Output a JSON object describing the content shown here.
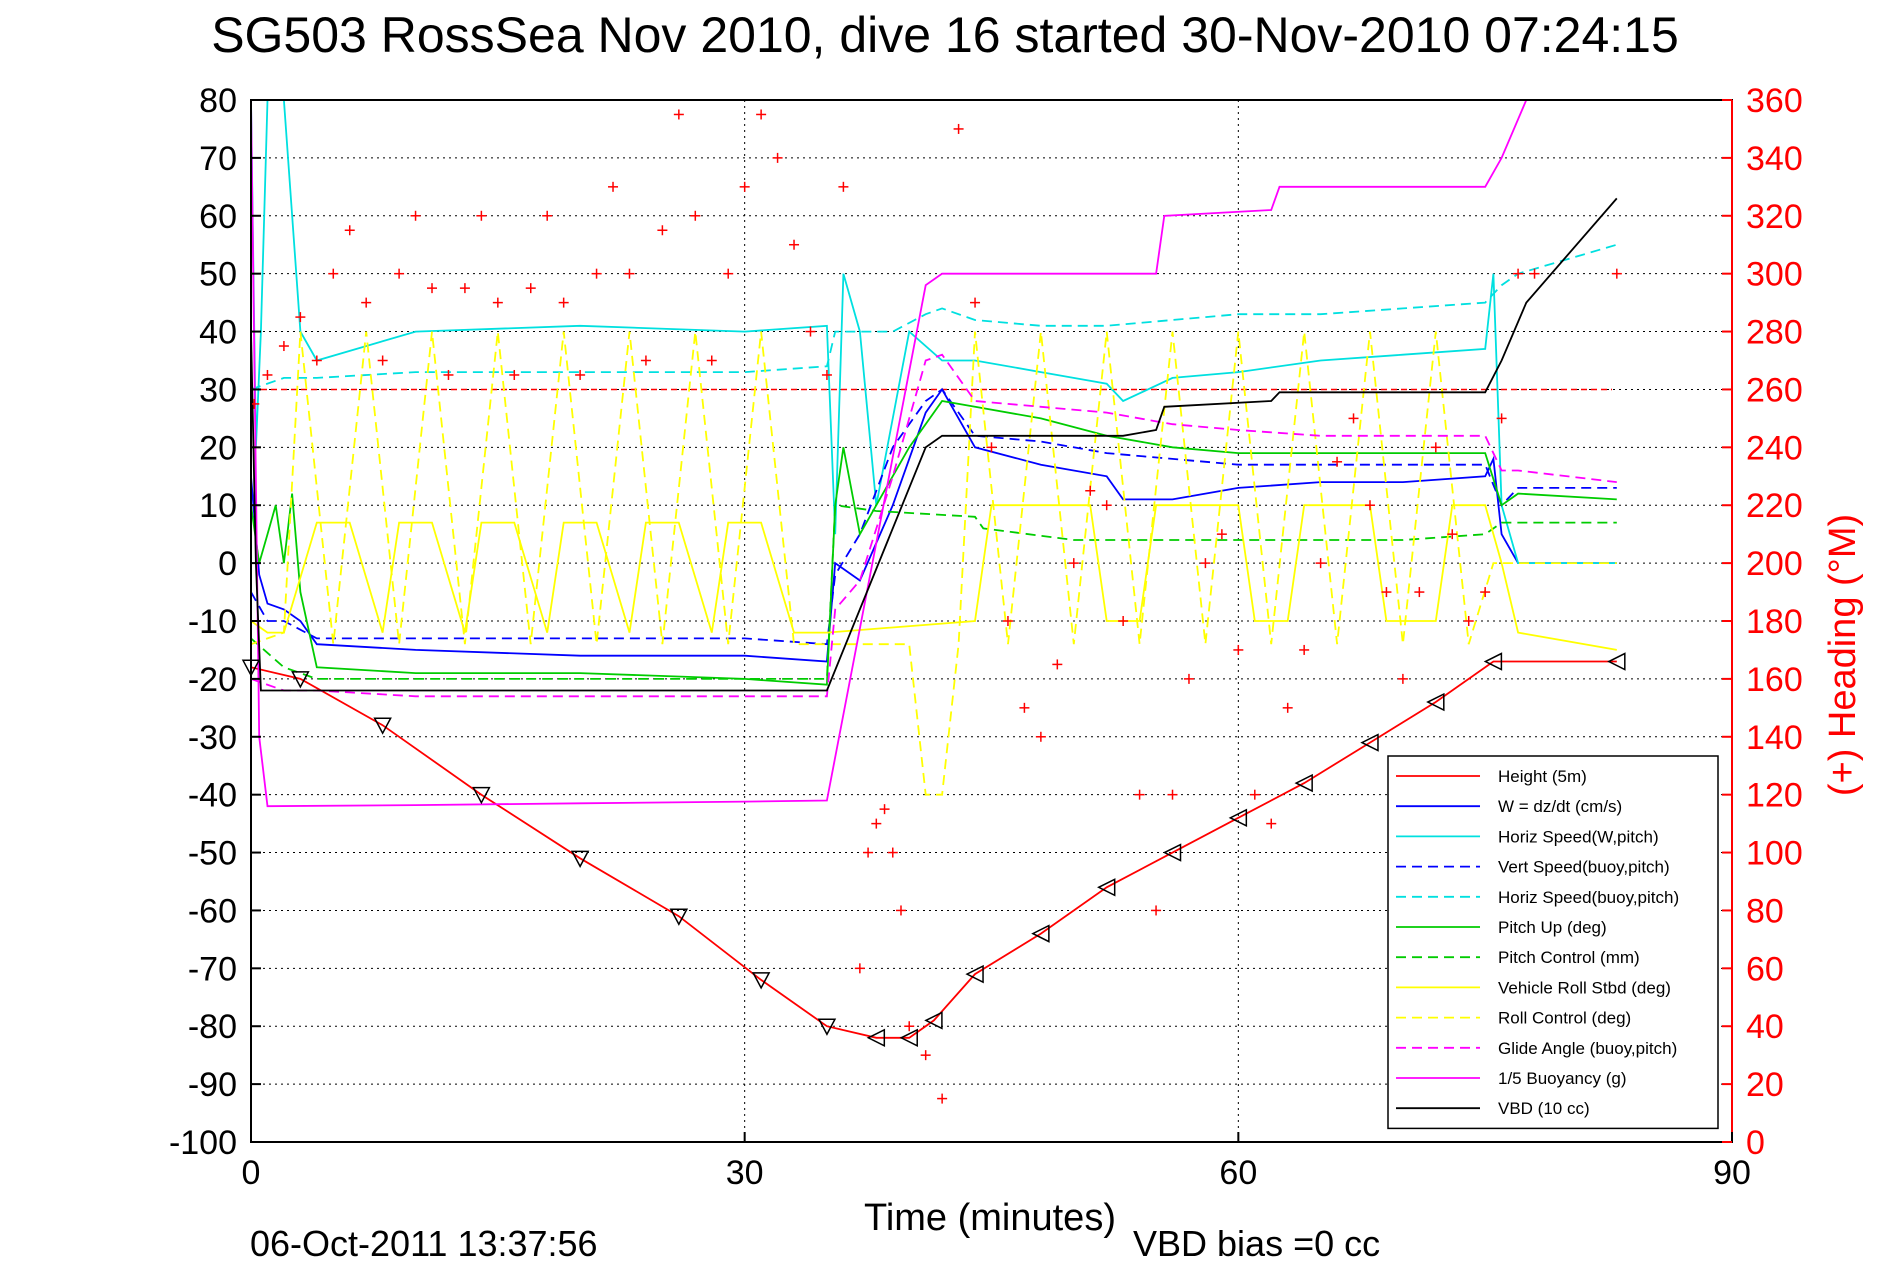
{
  "chart_data": {
    "type": "line",
    "title": "SG503 RossSea Nov 2010, dive 16 started 30-Nov-2010 07:24:15",
    "xlabel": "Time (minutes)",
    "ylabel": "",
    "y2label": "(+) Heading (°M)",
    "xlim": [
      0,
      90
    ],
    "ylim": [
      -100,
      80
    ],
    "y2lim": [
      0,
      360
    ],
    "xticks": [
      "0",
      "30",
      "60",
      "90"
    ],
    "yticks": [
      "80",
      "70",
      "60",
      "50",
      "40",
      "30",
      "20",
      "10",
      "0",
      "-10",
      "-20",
      "-30",
      "-40",
      "-50",
      "-60",
      "-70",
      "-80",
      "-90",
      "-100"
    ],
    "y2ticks": [
      "360",
      "340",
      "320",
      "300",
      "280",
      "260",
      "240",
      "220",
      "200",
      "180",
      "160",
      "140",
      "120",
      "100",
      "80",
      "60",
      "40",
      "20",
      "0"
    ],
    "grid": true,
    "legend_position": "bottom-right",
    "footer_left": "06-Oct-2011 13:37:56",
    "footer_right": "VBD bias =0 cc",
    "series": [
      {
        "name": "Height (5m)",
        "color": "#ff0000",
        "style": "solid",
        "x": [
          0,
          3,
          8,
          14,
          20,
          26,
          31,
          35,
          38,
          40,
          41.5,
          44,
          48,
          52,
          56,
          60,
          64,
          68,
          72,
          75.5,
          83
        ],
        "y": [
          -18,
          -20,
          -28,
          -40,
          -51,
          -61,
          -72,
          -80,
          -82,
          -82,
          -79,
          -71,
          -64,
          -56,
          -50,
          -44,
          -38,
          -31,
          -24,
          -17,
          -17
        ]
      },
      {
        "name": "W = dz/dt (cm/s)",
        "color": "#0000ff",
        "style": "solid",
        "x": [
          0,
          0.5,
          1,
          2,
          3,
          4,
          10,
          20,
          30,
          35,
          35.5,
          37,
          39,
          41,
          42,
          44,
          48,
          52,
          53,
          56,
          60,
          65,
          70,
          75,
          75.5,
          76,
          77,
          83
        ],
        "y": [
          15,
          -2,
          -7,
          -8,
          -10,
          -14,
          -15,
          -16,
          -16,
          -17,
          0,
          -3,
          10,
          26,
          30,
          20,
          17,
          15,
          11,
          11,
          13,
          14,
          14,
          15,
          18,
          5,
          0,
          0
        ]
      },
      {
        "name": "Horiz Speed(W,pitch)",
        "color": "#00e0e0",
        "style": "solid",
        "x": [
          0,
          0.3,
          0.6,
          1,
          2,
          3,
          4,
          10,
          20,
          30,
          35,
          35.5,
          36,
          37,
          38,
          40,
          42,
          44,
          48,
          52,
          53,
          56,
          60,
          65,
          70,
          75,
          75.5,
          76,
          77,
          83
        ],
        "y": [
          80,
          20,
          40,
          80,
          80,
          40,
          35,
          40,
          41,
          40,
          41,
          5,
          50,
          40,
          10,
          40,
          35,
          35,
          33,
          31,
          28,
          32,
          33,
          35,
          36,
          37,
          50,
          10,
          0,
          0
        ]
      },
      {
        "name": "Vert Speed(buoy,pitch)",
        "color": "#0000ff",
        "style": "dashed",
        "x": [
          0,
          1,
          2,
          4,
          10,
          20,
          30,
          35,
          35.5,
          37,
          39,
          41,
          42,
          44,
          48,
          52,
          56,
          60,
          65,
          70,
          75,
          76,
          77,
          83
        ],
        "y": [
          -5,
          -10,
          -10,
          -13,
          -13,
          -13,
          -13,
          -14,
          -2,
          5,
          20,
          28,
          30,
          22,
          21,
          19,
          18,
          17,
          17,
          17,
          17,
          10,
          13,
          13
        ]
      },
      {
        "name": "Horiz Speed(buoy,pitch)",
        "color": "#00e0e0",
        "style": "dashed",
        "x": [
          0,
          2,
          4,
          10,
          20,
          30,
          35,
          35.5,
          37,
          39,
          41,
          42,
          44,
          48,
          52,
          56,
          60,
          65,
          70,
          75,
          76,
          77,
          83
        ],
        "y": [
          30,
          32,
          32,
          33,
          33,
          33,
          34,
          40,
          40,
          40,
          43,
          44,
          42,
          41,
          41,
          42,
          43,
          43,
          44,
          45,
          48,
          50,
          55
        ]
      },
      {
        "name": "Pitch Up (deg)",
        "color": "#00cc00",
        "style": "solid",
        "x": [
          0,
          0.5,
          1,
          1.5,
          2,
          2.5,
          3,
          4,
          10,
          20,
          30,
          35,
          35.5,
          36,
          37,
          38,
          40,
          42,
          44,
          48,
          52,
          56,
          60,
          65,
          70,
          75,
          76,
          77,
          83
        ],
        "y": [
          10,
          0,
          5,
          10,
          0,
          12,
          -5,
          -18,
          -19,
          -19,
          -20,
          -21,
          10,
          20,
          5,
          10,
          20,
          28,
          27,
          25,
          22,
          20,
          19,
          19,
          19,
          19,
          10,
          12,
          11
        ]
      },
      {
        "name": "Pitch Control (mm)",
        "color": "#00cc00",
        "style": "dashed",
        "x": [
          0,
          2,
          4,
          35,
          35.5,
          38,
          44,
          44.5,
          50,
          60,
          70,
          75,
          76,
          77,
          83
        ],
        "y": [
          -13,
          -18,
          -20,
          -20,
          10,
          9,
          8,
          6,
          4,
          4,
          4,
          5,
          7,
          7,
          7
        ]
      },
      {
        "name": "Vehicle Roll Stbd (deg)",
        "color": "#ffff00",
        "style": "solid",
        "x": [
          0,
          1,
          2,
          4,
          6,
          8,
          9,
          11,
          13,
          14,
          16,
          18,
          19,
          21,
          23,
          24,
          26,
          28,
          29,
          31,
          33,
          35,
          44,
          45,
          51,
          52,
          54,
          55,
          60,
          61,
          63,
          64,
          68,
          69,
          72,
          73,
          75,
          76,
          77,
          83
        ],
        "y": [
          -10,
          -12,
          -12,
          7,
          7,
          -12,
          7,
          7,
          -12,
          7,
          7,
          -12,
          7,
          7,
          -12,
          7,
          7,
          -12,
          7,
          7,
          -12,
          -12,
          -10,
          10,
          10,
          -10,
          -10,
          10,
          10,
          -10,
          -10,
          10,
          10,
          -10,
          -10,
          10,
          10,
          0,
          -12,
          -15
        ]
      },
      {
        "name": "Roll Control (deg)",
        "color": "#ffff00",
        "style": "dashed",
        "x": [
          0,
          2,
          3,
          5,
          7,
          9,
          11,
          13,
          15,
          17,
          19,
          21,
          23,
          25,
          27,
          29,
          31,
          33,
          35,
          38,
          40,
          41,
          42,
          43,
          44,
          46,
          48,
          50,
          52,
          54,
          56,
          58,
          60,
          62,
          64,
          66,
          68,
          70,
          72,
          74,
          75.5,
          77,
          83
        ],
        "y": [
          -14,
          -12,
          40,
          -14,
          40,
          -14,
          40,
          -14,
          40,
          -14,
          40,
          -14,
          40,
          -14,
          40,
          -14,
          40,
          -14,
          -14,
          -14,
          -14,
          -40,
          -40,
          -14,
          40,
          -14,
          40,
          -14,
          40,
          -14,
          40,
          -14,
          40,
          -14,
          40,
          -14,
          40,
          -14,
          40,
          -14,
          0,
          0,
          0
        ]
      },
      {
        "name": "Glide Angle (buoy,pitch)",
        "color": "#ff00ff",
        "style": "dashed",
        "x": [
          0,
          2,
          4,
          10,
          20,
          30,
          35,
          35.5,
          37,
          39,
          41,
          42,
          44,
          48,
          52,
          56,
          60,
          65,
          70,
          75,
          76,
          77,
          83
        ],
        "y": [
          -20,
          -22,
          -22,
          -23,
          -23,
          -23,
          -23,
          -8,
          -3,
          15,
          35,
          36,
          28,
          27,
          26,
          24,
          23,
          22,
          22,
          22,
          16,
          16,
          14
        ]
      },
      {
        "name": "1/5 Buoyancy (g)",
        "color": "#ff00ff",
        "style": "solid",
        "x": [
          0,
          0.5,
          1,
          10,
          20,
          30,
          35,
          41,
          42,
          53,
          55,
          55.5,
          62,
          62.5,
          75,
          76,
          77.5
        ],
        "y": [
          80,
          -30,
          -42,
          -41.8,
          -41.5,
          -41.2,
          -41,
          48,
          50,
          50,
          50,
          60,
          61,
          65,
          65,
          70,
          80
        ]
      },
      {
        "name": "VBD (10 cc)",
        "color": "#000000",
        "style": "solid",
        "x": [
          0,
          0.3,
          0.6,
          10,
          20,
          30,
          35,
          41,
          42,
          53,
          55,
          55.5,
          62,
          62.5,
          75,
          76,
          77.5,
          83
        ],
        "y": [
          40,
          0,
          -22,
          -22,
          -22,
          -22,
          -22,
          20,
          22,
          22,
          23,
          27,
          28,
          29.5,
          29.5,
          35,
          45,
          63
        ]
      }
    ],
    "heading": {
      "name": "(+) Heading",
      "color": "#ff0000",
      "marker": "+",
      "x": [
        0.2,
        1,
        2,
        3,
        4,
        5,
        6,
        7,
        8,
        9,
        10,
        11,
        12,
        13,
        14,
        15,
        16,
        17,
        18,
        19,
        20,
        21,
        22,
        23,
        24,
        25,
        26,
        27,
        28,
        29,
        30,
        31,
        32,
        33,
        34,
        35,
        36,
        37,
        37.5,
        38,
        38.5,
        39,
        39.5,
        40,
        41,
        42,
        43,
        44,
        45,
        46,
        47,
        48,
        49,
        50,
        51,
        52,
        53,
        54,
        55,
        56,
        57,
        58,
        59,
        60,
        61,
        62,
        63,
        64,
        65,
        66,
        67,
        68,
        69,
        70,
        71,
        72,
        73,
        74,
        75,
        76,
        77,
        78,
        83
      ],
      "y": [
        255,
        265,
        275,
        285,
        270,
        300,
        315,
        290,
        270,
        300,
        320,
        295,
        265,
        295,
        320,
        290,
        265,
        295,
        320,
        290,
        265,
        300,
        330,
        300,
        270,
        315,
        355,
        320,
        270,
        300,
        330,
        355,
        340,
        310,
        280,
        265,
        330,
        60,
        100,
        110,
        115,
        100,
        80,
        40,
        30,
        15,
        350,
        290,
        240,
        180,
        150,
        140,
        165,
        200,
        225,
        220,
        180,
        120,
        80,
        120,
        160,
        200,
        210,
        170,
        120,
        110,
        150,
        170,
        200,
        235,
        250,
        220,
        190,
        160,
        190,
        240,
        210,
        180,
        190,
        250,
        300,
        300,
        300
      ]
    },
    "heading_ref": 260
  },
  "icons": {
    "dive_marker": "triangle-down-icon",
    "climb_marker": "triangle-left-icon"
  }
}
